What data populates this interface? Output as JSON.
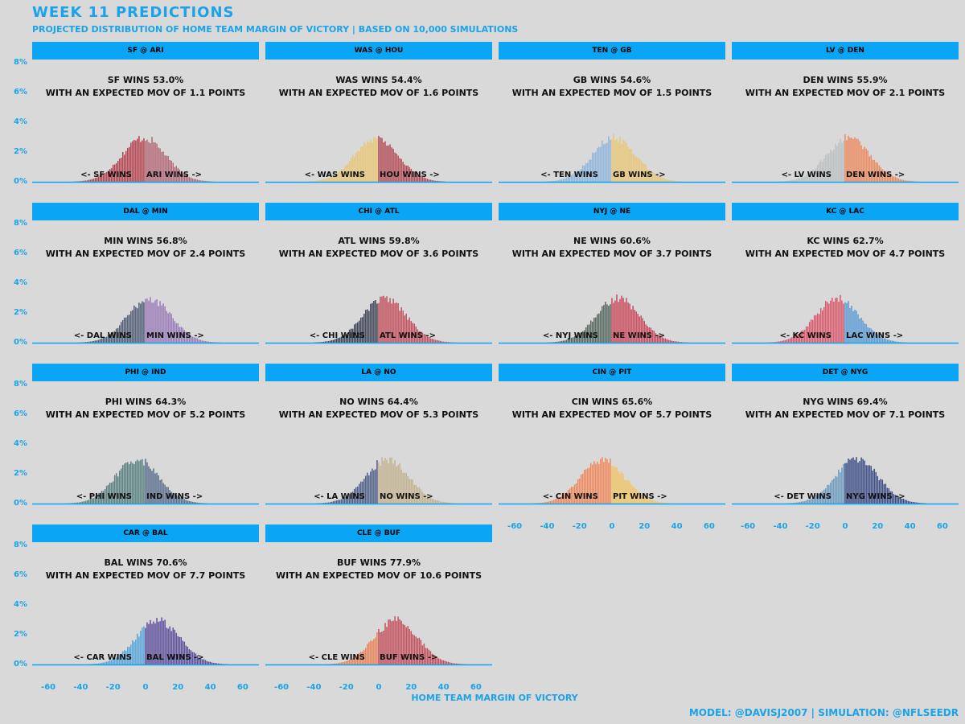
{
  "title": "WEEK 11 PREDICTIONS",
  "subtitle": "PROJECTED DISTRIBUTION OF HOME TEAM MARGIN OF VICTORY | BASED ON 10,000 SIMULATIONS",
  "credit": "MODEL: @DAVISJ2007 | SIMULATION: @NFLSEEDR",
  "colors": {
    "accent": "#1aa3e8",
    "strip": "#0aa6f5",
    "background": "#d9d9d9"
  },
  "chart_data": {
    "type": "bar",
    "title": "WEEK 11 PREDICTIONS",
    "xlabel": "HOME TEAM MARGIN OF VICTORY",
    "ylabel": "",
    "xlim": [
      -70,
      70
    ],
    "ylim": [
      0,
      8
    ],
    "x_ticks": [
      "-60",
      "-40",
      "-20",
      "0",
      "20",
      "40",
      "60"
    ],
    "y_ticks": [
      "0%",
      "2%",
      "4%",
      "6%",
      "8%"
    ],
    "x_tick_values": [
      -60,
      -40,
      -20,
      0,
      20,
      40,
      60
    ],
    "y_tick_values": [
      0,
      2,
      4,
      6,
      8
    ],
    "distribution": "approx. normal, mean = expected MOV, sd ~ 13.5 points, peak ~ 3% per 1-point bin",
    "games": [
      {
        "matchup": "SF @ ARI",
        "summary": "SF WINS 53.0%",
        "mov_text": "WITH AN EXPECTED MOV OF 1.1 POINTS",
        "away_label": "<- SF WINS",
        "home_label": "ARI WINS ->",
        "mean": -1.1,
        "win_pct": 53.0,
        "away_color": "#b5434f",
        "home_color": "#b26874"
      },
      {
        "matchup": "WAS @ HOU",
        "summary": "WAS WINS 54.4%",
        "mov_text": "WITH AN EXPECTED MOV OF 1.6 POINTS",
        "away_label": "<- WAS WINS",
        "home_label": "HOU WINS ->",
        "mean": -1.6,
        "win_pct": 54.4,
        "away_color": "#e8c777",
        "home_color": "#b44b55"
      },
      {
        "matchup": "TEN @ GB",
        "summary": "GB WINS 54.6%",
        "mov_text": "WITH AN EXPECTED MOV OF 1.5 POINTS",
        "away_label": "<- TEN WINS",
        "home_label": "GB WINS ->",
        "mean": 1.5,
        "win_pct": 54.6,
        "away_color": "#8fb6dc",
        "home_color": "#e8c777"
      },
      {
        "matchup": "LV @ DEN",
        "summary": "DEN WINS 55.9%",
        "mov_text": "WITH AN EXPECTED MOV OF 2.1 POINTS",
        "away_label": "<- LV WINS",
        "home_label": "DEN WINS ->",
        "mean": 2.1,
        "win_pct": 55.9,
        "away_color": "#bcc1c4",
        "home_color": "#ec8a5e"
      },
      {
        "matchup": "DAL @ MIN",
        "summary": "MIN WINS 56.8%",
        "mov_text": "WITH AN EXPECTED MOV OF 2.4 POINTS",
        "away_label": "<- DAL WINS",
        "home_label": "MIN WINS ->",
        "mean": 2.4,
        "win_pct": 56.8,
        "away_color": "#4f5d75",
        "home_color": "#9a7cb8"
      },
      {
        "matchup": "CHI @ ATL",
        "summary": "ATL WINS 59.8%",
        "mov_text": "WITH AN EXPECTED MOV OF 3.6 POINTS",
        "away_label": "<- CHI WINS",
        "home_label": "ATL WINS ->",
        "mean": 3.6,
        "win_pct": 59.8,
        "away_color": "#3d4456",
        "home_color": "#c2505c"
      },
      {
        "matchup": "NYJ @ NE",
        "summary": "NE WINS 60.6%",
        "mov_text": "WITH AN EXPECTED MOV OF 3.7 POINTS",
        "away_label": "<- NYJ WINS",
        "home_label": "NE WINS ->",
        "mean": 3.7,
        "win_pct": 60.6,
        "away_color": "#56675e",
        "home_color": "#c94a5b"
      },
      {
        "matchup": "KC @ LAC",
        "summary": "KC WINS 62.7%",
        "mov_text": "WITH AN EXPECTED MOV OF 4.7 POINTS",
        "away_label": "<- KC WINS",
        "home_label": "LAC WINS ->",
        "mean": -4.7,
        "win_pct": 62.7,
        "away_color": "#d9596a",
        "home_color": "#5b9bd5"
      },
      {
        "matchup": "PHI @ IND",
        "summary": "PHI WINS 64.3%",
        "mov_text": "WITH AN EXPECTED MOV OF 5.2 POINTS",
        "away_label": "<- PHI WINS",
        "home_label": "IND WINS ->",
        "mean": -5.2,
        "win_pct": 64.3,
        "away_color": "#5a8080",
        "home_color": "#5a6e8c"
      },
      {
        "matchup": "LA @ NO",
        "summary": "NO WINS 64.4%",
        "mov_text": "WITH AN EXPECTED MOV OF 5.3 POINTS",
        "away_label": "<- LA WINS",
        "home_label": "NO WINS ->",
        "mean": 5.3,
        "win_pct": 64.4,
        "away_color": "#4d5f87",
        "home_color": "#c4b392"
      },
      {
        "matchup": "CIN @ PIT",
        "summary": "CIN WINS 65.6%",
        "mov_text": "WITH AN EXPECTED MOV OF 5.7 POINTS",
        "away_label": "<- CIN WINS",
        "home_label": "PIT WINS ->",
        "mean": -5.7,
        "win_pct": 65.6,
        "away_color": "#f08a5d",
        "home_color": "#f0c566"
      },
      {
        "matchup": "DET @ NYG",
        "summary": "NYG WINS 69.4%",
        "mov_text": "WITH AN EXPECTED MOV OF 7.1 POINTS",
        "away_label": "<- DET WINS",
        "home_label": "NYG WINS ->",
        "mean": 7.1,
        "win_pct": 69.4,
        "away_color": "#6c9bc0",
        "home_color": "#3c4d86"
      },
      {
        "matchup": "CAR @ BAL",
        "summary": "BAL WINS 70.6%",
        "mov_text": "WITH AN EXPECTED MOV OF 7.7 POINTS",
        "away_label": "<- CAR WINS",
        "home_label": "BAL WINS ->",
        "mean": 7.7,
        "win_pct": 70.6,
        "away_color": "#57a6dc",
        "home_color": "#5d4f9a"
      },
      {
        "matchup": "CLE @ BUF",
        "summary": "BUF WINS 77.9%",
        "mov_text": "WITH AN EXPECTED MOV OF 10.6 POINTS",
        "away_label": "<- CLE WINS",
        "home_label": "BUF WINS ->",
        "mean": 10.6,
        "win_pct": 77.9,
        "away_color": "#e8845a",
        "home_color": "#c2505c"
      }
    ]
  }
}
